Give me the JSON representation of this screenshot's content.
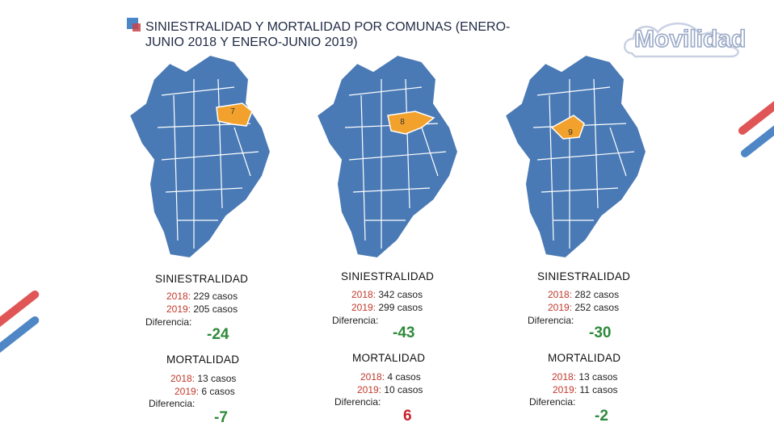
{
  "header": {
    "title": "SINIESTRALIDAD Y MORTALIDAD POR COMUNAS (ENERO-JUNIO 2018 Y ENERO-JUNIO 2019)",
    "logo_text": "Movilidad"
  },
  "colors": {
    "map_fill": "#4a7ab5",
    "highlight_fill": "#f2a22c",
    "accent_red": "#e05050",
    "accent_blue": "#4f86c6"
  },
  "panels": [
    {
      "comuna": "7",
      "sin_head": "SINIESTRALIDAD",
      "sin_2018_label": "2018:",
      "sin_2018": "229 casos",
      "sin_2019_label": "2019:",
      "sin_2019": "205 casos",
      "sin_diff_label": "Diferencia:",
      "sin_diff": "-24",
      "mor_head": "MORTALIDAD",
      "mor_2018_label": "2018:",
      "mor_2018": "13 casos",
      "mor_2019_label": "2019:",
      "mor_2019": "6 casos",
      "mor_diff_label": "Diferencia:",
      "mor_diff": "-7"
    },
    {
      "comuna": "8",
      "sin_head": "SINIESTRALIDAD",
      "sin_2018_label": "2018:",
      "sin_2018": "342 casos",
      "sin_2019_label": "2019:",
      "sin_2019": "299 casos",
      "sin_diff_label": "Diferencia:",
      "sin_diff": "-43",
      "mor_head": "MORTALIDAD",
      "mor_2018_label": "2018:",
      "mor_2018": "4 casos",
      "mor_2019_label": "2019:",
      "mor_2019": "10 casos",
      "mor_diff_label": "Diferencia:",
      "mor_diff": "6"
    },
    {
      "comuna": "9",
      "sin_head": "SINIESTRALIDAD",
      "sin_2018_label": "2018:",
      "sin_2018": "282 casos",
      "sin_2019_label": "2019:",
      "sin_2019": "252 casos",
      "sin_diff_label": "Diferencia:",
      "sin_diff": "-30",
      "mor_head": "MORTALIDAD",
      "mor_2018_label": "2018:",
      "mor_2018": "13 casos",
      "mor_2019_label": "2019:",
      "mor_2019": "11 casos",
      "mor_diff_label": "Diferencia:",
      "mor_diff": "-2"
    }
  ]
}
